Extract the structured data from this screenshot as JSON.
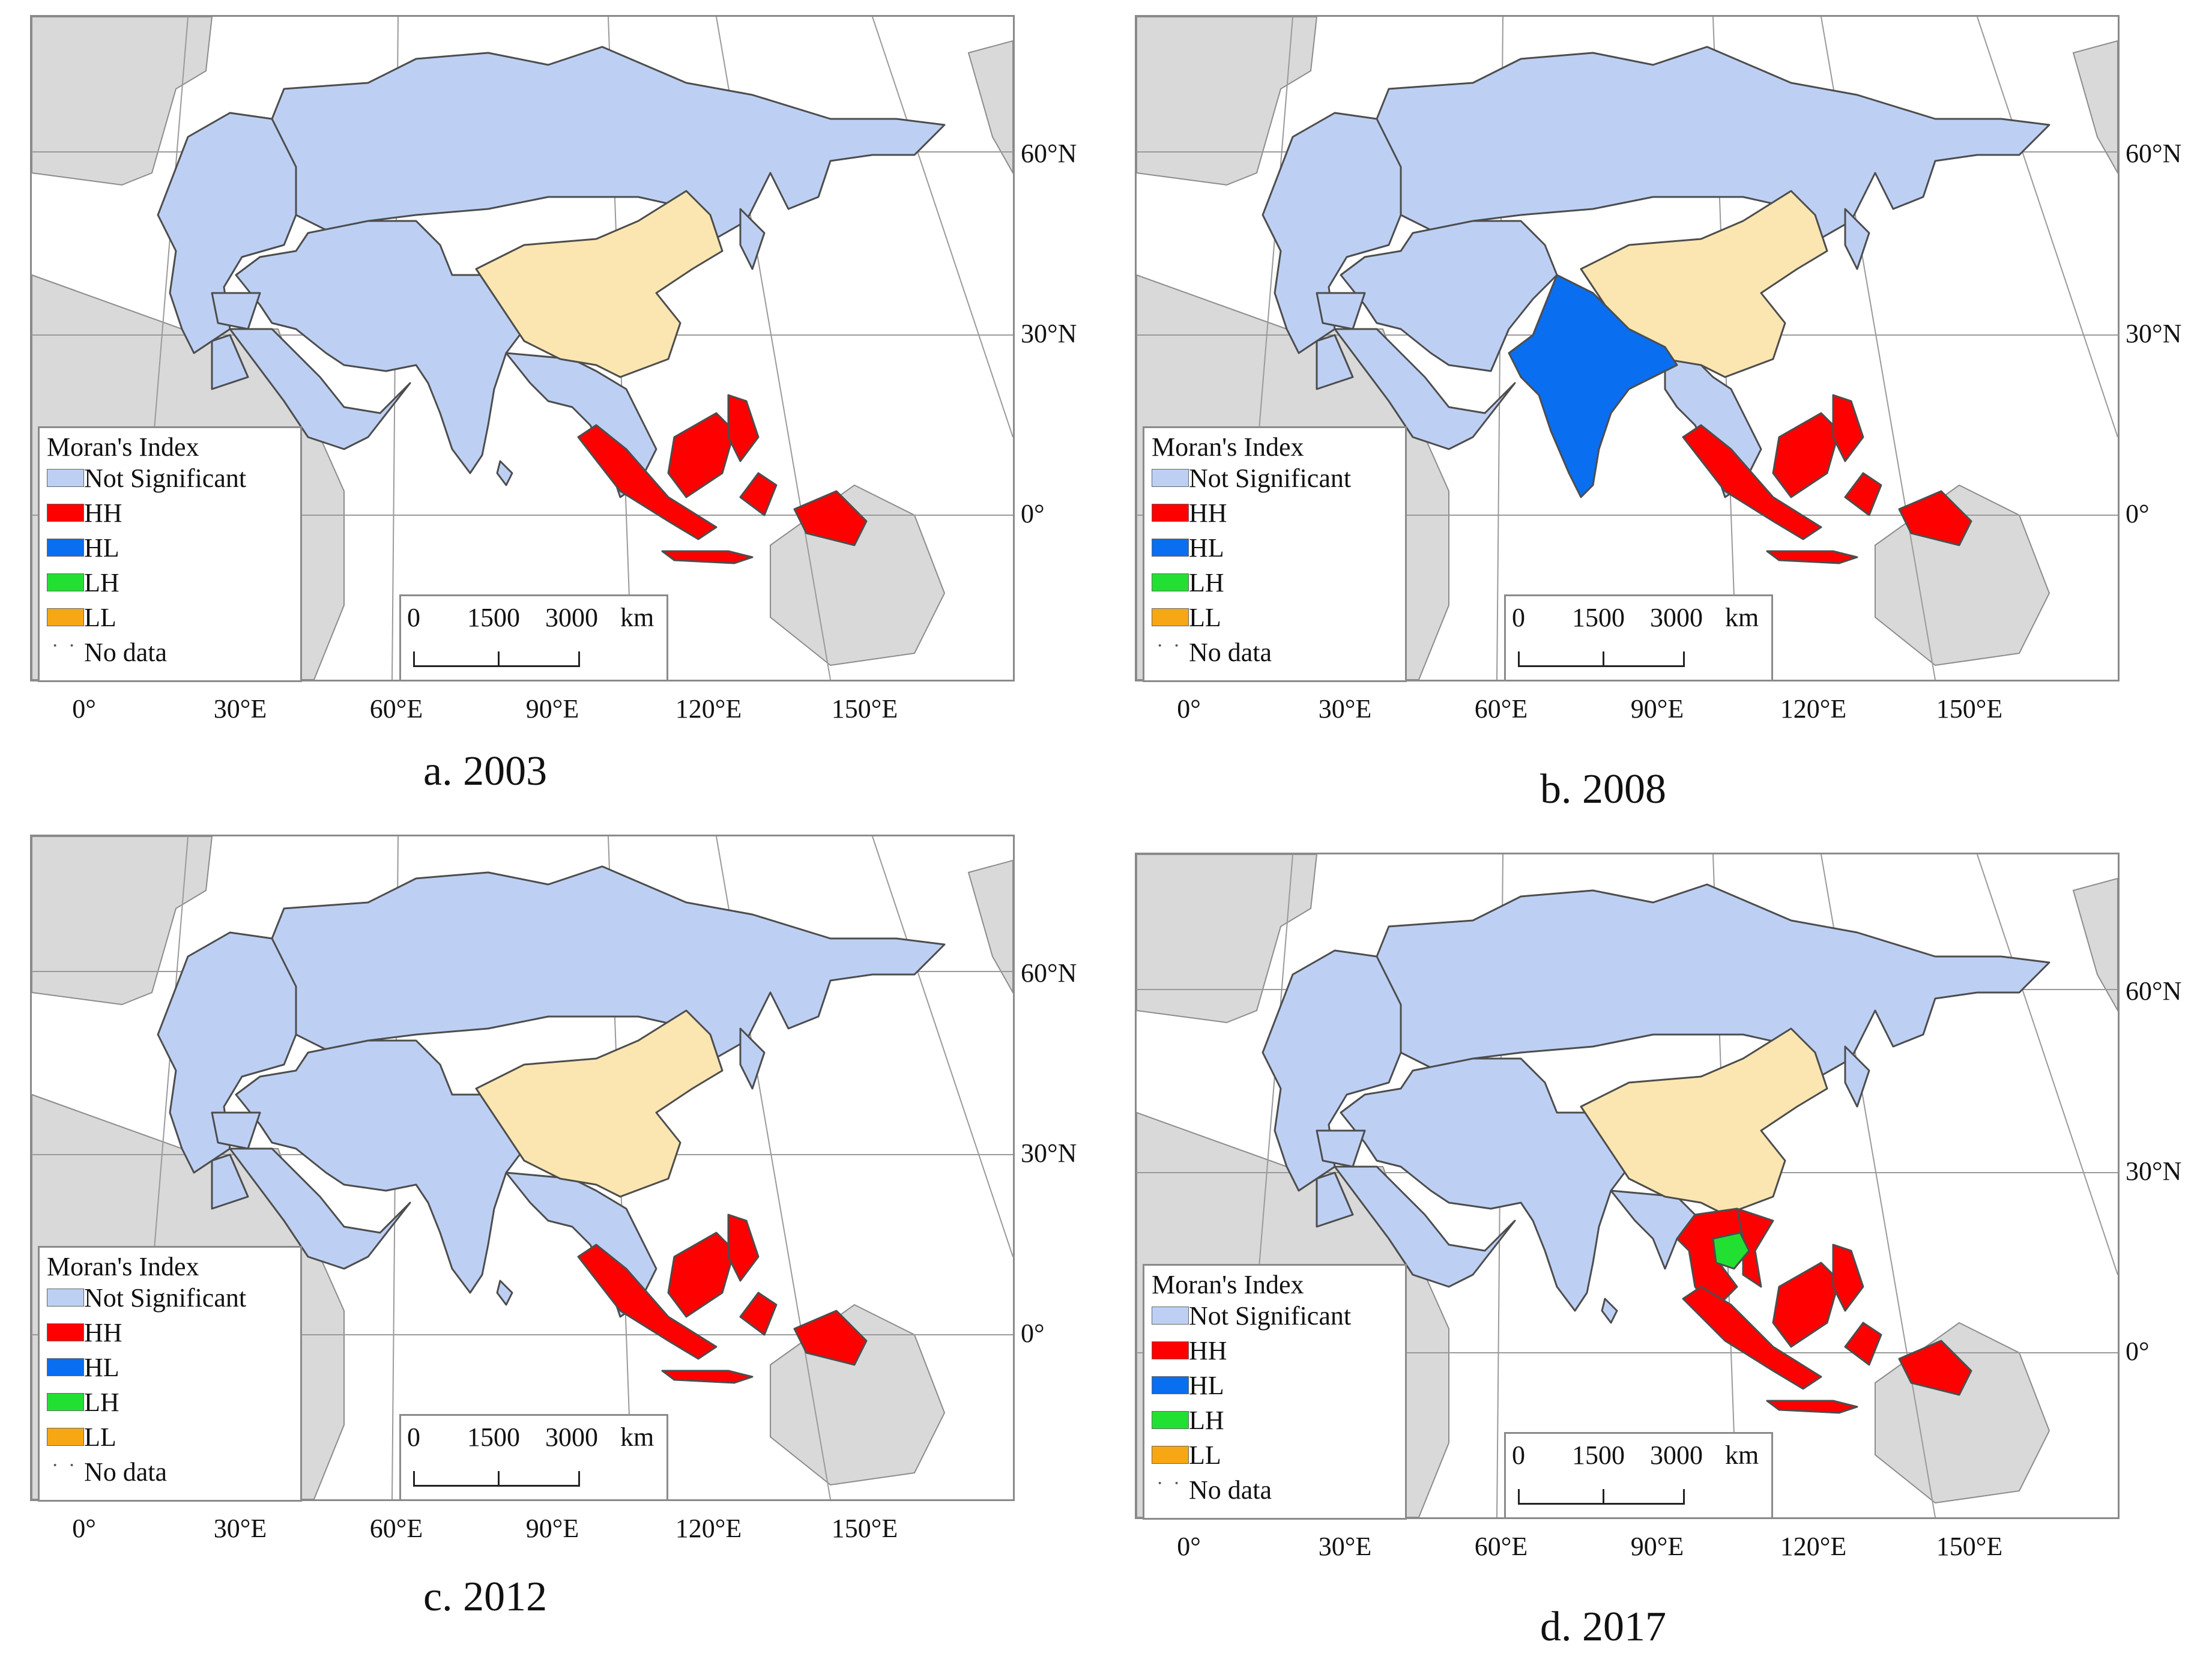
{
  "figure": {
    "legend": {
      "title": "Moran's Index",
      "items": [
        {
          "label": "Not Significant",
          "color": "#bdd0f4"
        },
        {
          "label": "HH",
          "color": "#ff0000"
        },
        {
          "label": "HL",
          "color": "#0a6ef0"
        },
        {
          "label": "LH",
          "color": "#22e032"
        },
        {
          "label": "LL",
          "color": "#f7a713"
        },
        {
          "label": "No data",
          "color": "#ffffff"
        }
      ]
    },
    "scale": {
      "zero": "0",
      "mid": "1500",
      "max": "3000",
      "unit": "km"
    },
    "lat_labels": [
      "60°N",
      "30°N",
      "0°"
    ],
    "lon_labels": [
      "0°",
      "30°E",
      "60°E",
      "90°E",
      "120°E",
      "150°E"
    ],
    "colors": {
      "not_significant": "#bdd0f4",
      "china": "#fbe6b1",
      "hh": "#ff0000",
      "hl": "#0a6ef0",
      "lh": "#22e032",
      "other_land": "#d9d9d9",
      "graticule": "#9a9a9a",
      "border": "#4d4d4d"
    }
  },
  "panels": [
    {
      "id": "a",
      "caption": "a. 2003",
      "hh": [
        "Indonesia",
        "Philippines",
        "Malaysia",
        "Papua New Guinea"
      ],
      "hl": [],
      "lh": []
    },
    {
      "id": "b",
      "caption": "b. 2008",
      "hh": [
        "Indonesia",
        "Philippines",
        "Malaysia",
        "Papua New Guinea"
      ],
      "hl": [
        "India"
      ],
      "lh": []
    },
    {
      "id": "c",
      "caption": "c. 2012",
      "hh": [
        "Indonesia",
        "Philippines",
        "Malaysia",
        "Papua New Guinea"
      ],
      "hl": [],
      "lh": []
    },
    {
      "id": "d",
      "caption": "d. 2017",
      "hh": [
        "Indonesia",
        "Philippines",
        "Malaysia",
        "Papua New Guinea",
        "Thailand",
        "Vietnam"
      ],
      "hl": [],
      "lh": [
        "Cambodia"
      ]
    }
  ]
}
